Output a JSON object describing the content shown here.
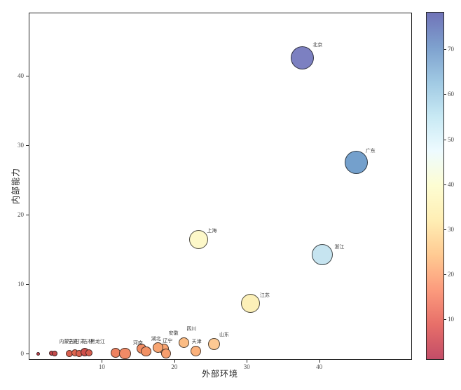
{
  "chart_data": {
    "type": "scatter",
    "title": "",
    "xlabel": "外部环境",
    "ylabel": "内部能力",
    "xlim": [
      -0.1,
      52.8
    ],
    "ylim": [
      -0.9,
      49.1
    ],
    "x_ticks": [
      10,
      20,
      30,
      40
    ],
    "y_ticks": [
      0,
      10,
      20,
      30,
      40
    ],
    "grid": false,
    "legend_position": "colorbar-right",
    "colormap": "RdYlBu",
    "edge_color": "rgba(20,20,20,0.75)",
    "colorbar": {
      "min": 1,
      "max": 78.3,
      "ticks": [
        10,
        20,
        30,
        40,
        50,
        60,
        70
      ],
      "gradient_stops_bottom_to_top": [
        "#c34d68",
        "#e76f69",
        "#fc9b7d",
        "#ffca92",
        "#ffeeb4",
        "#fdfdd2",
        "#eefbff",
        "#c8e9f4",
        "#a0c9e3",
        "#7ea1ce",
        "#7073b8"
      ]
    },
    "points": [
      {
        "label": "北京",
        "x": 37.7,
        "y": 42.6,
        "r": 16.5,
        "value": 76,
        "color": "#7c80c1",
        "lx": 39.1,
        "ly": 44.5
      },
      {
        "label": "广东",
        "x": 45.1,
        "y": 27.5,
        "r": 16.5,
        "value": 66,
        "color": "#74a0cc",
        "lx": 46.4,
        "ly": 29.2
      },
      {
        "label": "浙江",
        "x": 40.4,
        "y": 14.3,
        "r": 15,
        "value": 53,
        "color": "#c6e4f0",
        "lx": 42.1,
        "ly": 15.4
      },
      {
        "label": "上海",
        "x": 23.4,
        "y": 16.4,
        "r": 13.5,
        "value": 43,
        "color": "#fdf8c9",
        "lx": 24.5,
        "ly": 17.7
      },
      {
        "label": "江苏",
        "x": 30.5,
        "y": 7.2,
        "r": 13.5,
        "value": 40,
        "color": "#fcf0b8",
        "lx": 31.8,
        "ly": 8.4
      },
      {
        "label": "山东",
        "x": 25.5,
        "y": 1.4,
        "r": 8.5,
        "value": 30,
        "color": "#fdc993",
        "lx": 26.2,
        "ly": 2.7
      },
      {
        "label": "四川",
        "x": 21.3,
        "y": 1.6,
        "r": 7.5,
        "value": 29,
        "color": "#fbbc84",
        "lx": 21.7,
        "ly": 3.5
      },
      {
        "label": "天津",
        "x": 23.0,
        "y": 0.4,
        "r": 7.5,
        "value": 27,
        "color": "#fbb17b",
        "lx": 22.4,
        "ly": 1.7
      },
      {
        "label": "安徽",
        "x": 18.5,
        "y": 0.7,
        "r": 7.3,
        "value": 24,
        "color": "#f9a471",
        "lx": 19.2,
        "ly": 2.9
      },
      {
        "label": "辽宁",
        "x": 18.9,
        "y": 0.0,
        "r": 7.0,
        "value": 23,
        "color": "#f79e6d",
        "lx": 18.4,
        "ly": 1.8
      },
      {
        "label": "湖北",
        "x": 17.7,
        "y": 0.9,
        "r": 7.5,
        "value": 24,
        "color": "#f8a572",
        "lx": 16.8,
        "ly": 2.1
      },
      {
        "label": "河南",
        "x": 15.5,
        "y": 0.7,
        "r": 7.0,
        "value": 21,
        "color": "#f18c63",
        "lx": 14.3,
        "ly": 1.5
      },
      {
        "label": "",
        "x": 16.1,
        "y": 0.3,
        "r": 7.3,
        "value": 22,
        "color": "#f29164",
        "lx": null,
        "ly": null
      },
      {
        "label": "",
        "x": 11.9,
        "y": 0.1,
        "r": 7.3,
        "value": 19,
        "color": "#ee8260",
        "lx": null,
        "ly": null
      },
      {
        "label": "",
        "x": 13.2,
        "y": 0.0,
        "r": 8.3,
        "value": 20,
        "color": "#f18a66",
        "lx": null,
        "ly": null
      },
      {
        "label": "内蒙古",
        "x": 5.5,
        "y": 0.0,
        "r": 5.0,
        "value": 12,
        "color": "#d95f4e",
        "lx": 4.1,
        "ly": 1.7
      },
      {
        "label": "宁夏",
        "x": 6.3,
        "y": 0.1,
        "r": 5.0,
        "value": 13,
        "color": "#dd654f",
        "lx": 5.3,
        "ly": 1.7
      },
      {
        "label": "甘肃",
        "x": 6.9,
        "y": 0.0,
        "r": 5.0,
        "value": 12,
        "color": "#d95f4e",
        "lx": 6.3,
        "ly": 1.7
      },
      {
        "label": "吉林",
        "x": 7.6,
        "y": 0.2,
        "r": 6.0,
        "value": 10,
        "color": "#cf4e4a",
        "lx": 7.4,
        "ly": 1.7
      },
      {
        "label": "黑龙江",
        "x": 8.2,
        "y": 0.1,
        "r": 5.0,
        "value": 11,
        "color": "#d65c4d",
        "lx": 8.4,
        "ly": 1.7
      },
      {
        "label": "",
        "x": 3.05,
        "y": 0.1,
        "r": 3.5,
        "value": 6,
        "color": "#c04649",
        "lx": null,
        "ly": null
      },
      {
        "label": "",
        "x": 3.5,
        "y": 0.0,
        "r": 4.0,
        "value": 7,
        "color": "#c54b4b",
        "lx": null,
        "ly": null
      },
      {
        "label": "",
        "x": 1.2,
        "y": 0.0,
        "r": 2.5,
        "value": 5,
        "color": "#c2434f",
        "lx": null,
        "ly": null
      }
    ]
  }
}
